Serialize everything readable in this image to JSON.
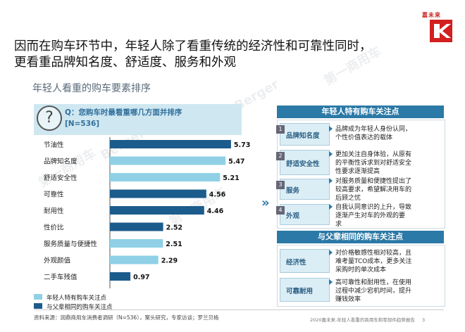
{
  "headline_line1": "因而在购车环节中，年轻人除了看重传统的经济性和可靠性同时，",
  "headline_line2": "更看重品牌知名度、舒适度、服务和外观",
  "subtitle": "年轻人看重的购车要素排序",
  "logo_text": "嘉未来",
  "question": {
    "prefix": "Q：",
    "text": "您购车时最看重哪几方面并排序",
    "n": "[N=536]"
  },
  "colors": {
    "dark_bar": "#1c5c8c",
    "light_bar": "#8fd0e6",
    "accent": "#2b79a6"
  },
  "chart_data": {
    "type": "bar",
    "orientation": "horizontal",
    "categories": [
      "节油性",
      "品牌知名度",
      "舒适安全性",
      "可靠性",
      "耐用性",
      "性价比",
      "服务质量与便捷性",
      "外观颜值",
      "二手车残值"
    ],
    "values": [
      5.73,
      5.47,
      5.21,
      4.56,
      4.46,
      2.52,
      2.51,
      2.29,
      0.97
    ],
    "value_labels": [
      "5.73",
      "5.47",
      "5.21",
      "4.56",
      "4.46",
      "2.52",
      "2.51",
      "2.29",
      "0.97"
    ],
    "group": [
      "common",
      "young",
      "young",
      "common",
      "common",
      "common",
      "young",
      "young",
      "common"
    ],
    "legend": [
      {
        "key": "young",
        "label": "年轻人特有购车关注点",
        "color": "#8fd0e6"
      },
      {
        "key": "common",
        "label": "与父辈相同的购车关注点",
        "color": "#1c5c8c"
      }
    ],
    "xlim": [
      0,
      6
    ],
    "grid": false
  },
  "young_panel": {
    "title": "年轻人特有购车关注点",
    "rows": [
      {
        "num": "1",
        "label": "品牌知名度",
        "desc_line1": "品牌成为年轻人身份认同，",
        "desc_line2": "个性价值表达的载体",
        "desc_line3": ""
      },
      {
        "num": "2",
        "label": "舒适安全性",
        "desc_line1": "更加关注自身体验，从原有",
        "desc_line2": "的平衡性诉求到对舒适安全",
        "desc_line3": "性要求逐渐提高"
      },
      {
        "num": "3",
        "label": "服务",
        "desc_line1": "对服务质量和便捷性提出了",
        "desc_line2": "较高要求，希望解决用车的",
        "desc_line3": "后顾之忧"
      },
      {
        "num": "4",
        "label": "外观",
        "desc_line1": "自我认同意识的上升，导致",
        "desc_line2": "逐渐产生对车的外观的要",
        "desc_line3": "求"
      }
    ]
  },
  "common_panel": {
    "title": "与父辈相同的购车关注点",
    "rows": [
      {
        "label": "经济性",
        "desc_line1": "对价格敏感性相对较高，且",
        "desc_line2": "难考量TCO成本，更多关注",
        "desc_line3": "采购时的单次成本"
      },
      {
        "label": "可靠耐用",
        "desc_line1": "高可靠性和耐用性，在使用",
        "desc_line2": "过程中减少宕机时间，提升",
        "desc_line3": "赚钱效率"
      }
    ]
  },
  "source": "资料来源：润鼎商用车消费者调研（N=536），案头研究，专家访谈；罗兰贝格",
  "footer": "2020嘉未来-年轻人看重的商用车和零部件趋势报告",
  "page_num": "3"
}
